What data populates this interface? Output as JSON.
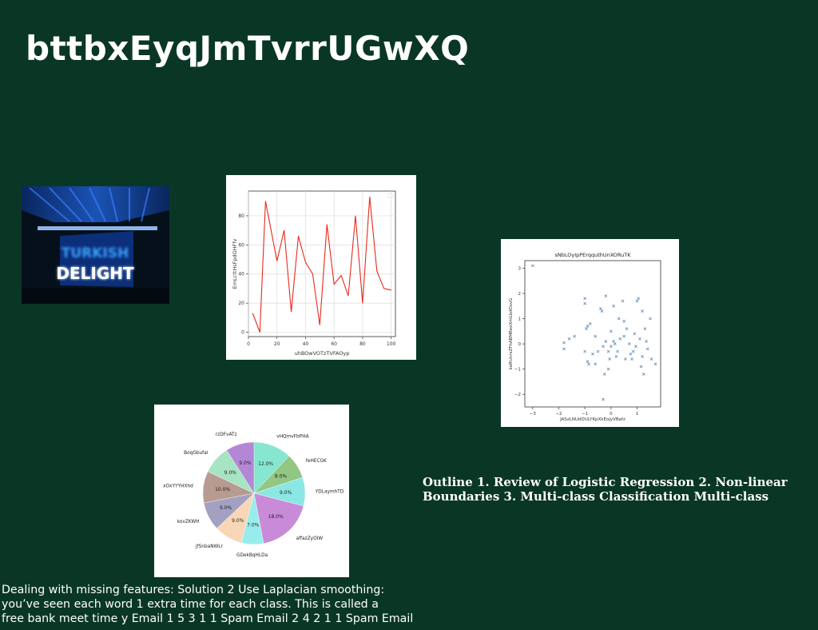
{
  "slide": {
    "title": "bttbxEyqJmTvrrUGwXQ",
    "outline_text": "Outline 1. Review of Logistic Regression 2. Non-linear Boundaries 3. Multi-class Classification Multi-class",
    "note_lines": [
      "Dealing with missing features: Solution 2 Use Laplacian smoothing:",
      "you’ve seen each word 1 extra time for each class. This is called a",
      "free bank meet time y Email 1 5 3 1 1 Spam Email 2 4 2 1 1 Spam Email"
    ],
    "background_color": "#0a3725"
  },
  "photo": {
    "sign_lines": [
      "TURKISH",
      "DELIGHT"
    ]
  },
  "chart_data": [
    {
      "type": "line",
      "xlabel": "uhBOwVOTzTVFAOyp",
      "ylabel": "EmLcttHsFpdGHFfv",
      "x": [
        3,
        8,
        12,
        20,
        25,
        30,
        35,
        40,
        45,
        50,
        55,
        60,
        65,
        70,
        75,
        80,
        85,
        90,
        95,
        100
      ],
      "y": [
        13,
        0,
        90,
        49,
        70,
        14,
        66,
        48,
        40,
        5,
        74,
        33,
        39,
        25,
        80,
        20,
        93,
        42,
        30,
        29
      ],
      "xlim": [
        0,
        103
      ],
      "ylim": [
        -3,
        97
      ],
      "xticks": [
        0,
        20,
        40,
        60,
        80,
        100
      ],
      "yticks": [
        0,
        20,
        40,
        60,
        80
      ],
      "color": "#e8291c",
      "grid": true
    },
    {
      "type": "scatter",
      "title": "sNbLOyIpPErqquthUnXORuTK",
      "xlabel": "JASzLNUdDULYKpXkEojyVBefz",
      "ylabel": "keRUnrsZFhABMReeXmLbdOsvG",
      "marker": "x",
      "color": "#4f7fa8",
      "xlim": [
        -3.3,
        1.9
      ],
      "ylim": [
        -2.5,
        3.3
      ],
      "xticks": [
        -3,
        -2,
        -1,
        0,
        1
      ],
      "yticks": [
        -2,
        -1,
        0,
        1,
        2,
        3
      ],
      "points": [
        [
          -3.0,
          3.1
        ],
        [
          -1.8,
          -0.2
        ],
        [
          -1.8,
          0.05
        ],
        [
          -1.6,
          0.2
        ],
        [
          -1.4,
          0.3
        ],
        [
          -1.0,
          1.8
        ],
        [
          -1.0,
          1.6
        ],
        [
          -0.9,
          0.7
        ],
        [
          -0.95,
          0.6
        ],
        [
          -0.8,
          0.8
        ],
        [
          -1.0,
          -0.3
        ],
        [
          -0.9,
          -0.7
        ],
        [
          -0.85,
          -0.8
        ],
        [
          -0.7,
          -0.4
        ],
        [
          -0.6,
          0.3
        ],
        [
          -0.5,
          -0.3
        ],
        [
          -0.4,
          1.4
        ],
        [
          -0.35,
          1.3
        ],
        [
          -0.3,
          -0.1
        ],
        [
          -0.2,
          0.1
        ],
        [
          -0.2,
          1.9
        ],
        [
          -0.25,
          -1.2
        ],
        [
          -0.1,
          -0.3
        ],
        [
          -0.1,
          -1.0
        ],
        [
          -0.3,
          -2.2
        ],
        [
          0.0,
          0.5
        ],
        [
          0.1,
          1.5
        ],
        [
          0.1,
          0.1
        ],
        [
          0.15,
          0.0
        ],
        [
          0.2,
          -0.5
        ],
        [
          0.25,
          -0.3
        ],
        [
          0.3,
          1.0
        ],
        [
          0.35,
          0.2
        ],
        [
          0.45,
          1.7
        ],
        [
          0.5,
          0.3
        ],
        [
          0.55,
          -0.6
        ],
        [
          0.6,
          0.6
        ],
        [
          0.7,
          0.0
        ],
        [
          0.75,
          -0.4
        ],
        [
          0.8,
          -0.6
        ],
        [
          0.85,
          -0.3
        ],
        [
          0.9,
          0.4
        ],
        [
          0.95,
          -0.1
        ],
        [
          1.0,
          1.7
        ],
        [
          1.05,
          1.8
        ],
        [
          1.1,
          0.2
        ],
        [
          1.15,
          -0.9
        ],
        [
          1.2,
          -0.5
        ],
        [
          1.2,
          1.3
        ],
        [
          1.3,
          0.6
        ],
        [
          1.4,
          -0.2
        ],
        [
          1.5,
          1.0
        ],
        [
          1.55,
          -0.6
        ],
        [
          1.7,
          -0.8
        ],
        [
          -0.6,
          -0.8
        ],
        [
          0.0,
          -0.1
        ],
        [
          1.25,
          -1.2
        ],
        [
          -0.05,
          -0.6
        ],
        [
          0.5,
          0.9
        ],
        [
          1.35,
          0.1
        ]
      ]
    },
    {
      "type": "pie",
      "slices": [
        {
          "label": "vHQmvFbPHA",
          "pct_label": "12.0%",
          "value": 12.0,
          "color": "#86e6cf"
        },
        {
          "label": "feHECGK",
          "pct_label": "8.0%",
          "value": 8.0,
          "color": "#92c683"
        },
        {
          "label": "YDLaymhTD",
          "pct_label": "9.0%",
          "value": 9.0,
          "color": "#8ae7e4"
        },
        {
          "label": "affazZyOIW",
          "pct_label": "18.0%",
          "value": 18.0,
          "color": "#c98ad8"
        },
        {
          "label": "GDekBqHLDa",
          "pct_label": "7.0%",
          "value": 7.0,
          "color": "#98ecec"
        },
        {
          "label": "jfSnbaNWLr",
          "pct_label": "9.0%",
          "value": 9.0,
          "color": "#f8d6b6"
        },
        {
          "label": "kovZKWH",
          "pct_label": "9.0%",
          "value": 9.0,
          "color": "#a4a0c2"
        },
        {
          "label": "xOxYYYHXhd",
          "pct_label": "10.0%",
          "value": 10.0,
          "color": "#b79b90"
        },
        {
          "label": "BoqGbufal",
          "pct_label": "9.0%",
          "value": 9.0,
          "color": "#a6e4c4"
        },
        {
          "label": "rzDFvATz",
          "pct_label": "9.0%",
          "value": 9.0,
          "color": "#b387d6"
        }
      ]
    }
  ]
}
